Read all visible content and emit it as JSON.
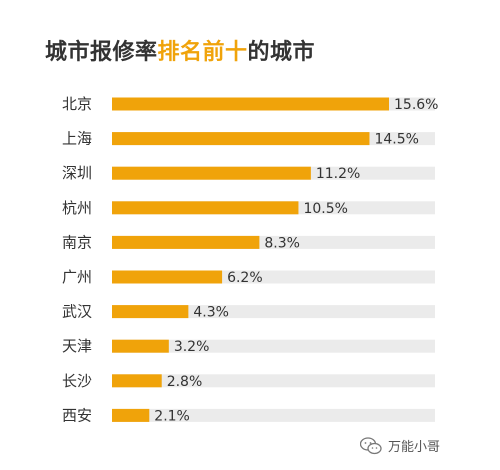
{
  "title": {
    "prefix": "城市报修率",
    "highlight": "排名前十",
    "suffix": "的城市"
  },
  "colors": {
    "bar": "#f0a30a",
    "track": "#ebebeb",
    "highlight": "#f0a30a"
  },
  "watermark": {
    "text": "万能小哥",
    "icon": "wechat-icon"
  },
  "chart_data": {
    "type": "bar",
    "orientation": "horizontal",
    "title": "城市报修率排名前十的城市",
    "categories": [
      "北京",
      "上海",
      "深圳",
      "杭州",
      "南京",
      "广州",
      "武汉",
      "天津",
      "长沙",
      "西安"
    ],
    "values": [
      15.6,
      14.5,
      11.2,
      10.5,
      8.3,
      6.2,
      4.3,
      3.2,
      2.8,
      2.1
    ],
    "value_labels": [
      "15.6%",
      "14.5%",
      "11.2%",
      "10.5%",
      "8.3%",
      "6.2%",
      "4.3%",
      "3.2%",
      "2.8%",
      "2.1%"
    ],
    "unit": "%",
    "xlim": [
      0,
      18
    ],
    "grid": false,
    "legend": "none"
  }
}
